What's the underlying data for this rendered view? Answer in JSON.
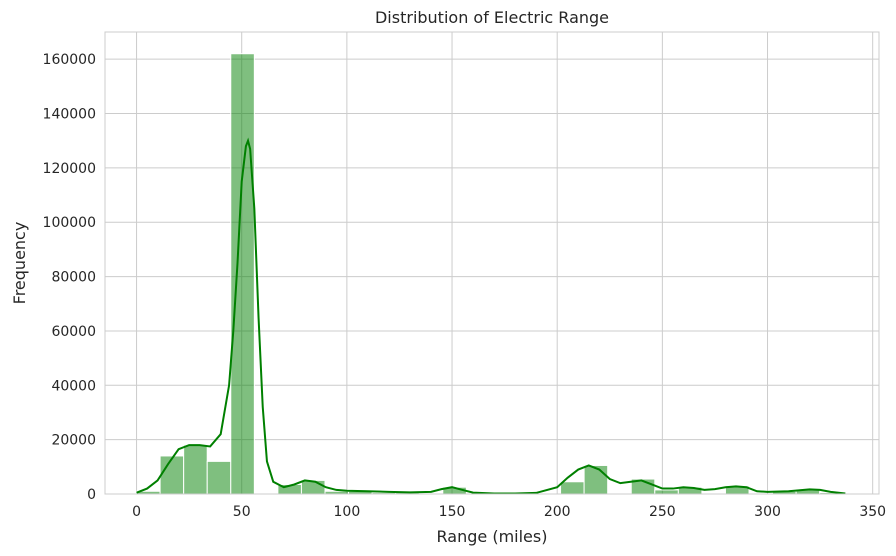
{
  "chart_data": {
    "type": "bar",
    "title": "Distribution of Electric Range",
    "xlabel": "Range (miles)",
    "ylabel": "Frequency",
    "xlim": [
      -15,
      353
    ],
    "ylim": [
      0,
      170000
    ],
    "xticks": [
      0,
      50,
      100,
      150,
      200,
      250,
      300,
      350
    ],
    "yticks": [
      0,
      20000,
      40000,
      60000,
      80000,
      100000,
      120000,
      140000,
      160000
    ],
    "grid": true,
    "colors": {
      "bars": "#008000",
      "kde": "#008000"
    },
    "bin_width": 11.2,
    "bin_start": 0,
    "bins": [
      {
        "x_start": 0.0,
        "count": 1000
      },
      {
        "x_start": 11.2,
        "count": 14000
      },
      {
        "x_start": 22.4,
        "count": 18000
      },
      {
        "x_start": 33.6,
        "count": 12000
      },
      {
        "x_start": 44.8,
        "count": 162000
      },
      {
        "x_start": 56.0,
        "count": 0
      },
      {
        "x_start": 67.2,
        "count": 3500
      },
      {
        "x_start": 78.4,
        "count": 5000
      },
      {
        "x_start": 89.6,
        "count": 1000
      },
      {
        "x_start": 100.8,
        "count": 1000
      },
      {
        "x_start": 112.0,
        "count": 500
      },
      {
        "x_start": 123.2,
        "count": 500
      },
      {
        "x_start": 134.4,
        "count": 0
      },
      {
        "x_start": 145.6,
        "count": 2500
      },
      {
        "x_start": 156.8,
        "count": 0
      },
      {
        "x_start": 168.0,
        "count": 0
      },
      {
        "x_start": 179.2,
        "count": 0
      },
      {
        "x_start": 190.4,
        "count": 0
      },
      {
        "x_start": 201.6,
        "count": 4500
      },
      {
        "x_start": 212.8,
        "count": 10500
      },
      {
        "x_start": 224.0,
        "count": 0
      },
      {
        "x_start": 235.2,
        "count": 5500
      },
      {
        "x_start": 246.4,
        "count": 1500
      },
      {
        "x_start": 257.6,
        "count": 2500
      },
      {
        "x_start": 268.8,
        "count": 0
      },
      {
        "x_start": 280.0,
        "count": 3000
      },
      {
        "x_start": 291.2,
        "count": 0
      },
      {
        "x_start": 302.4,
        "count": 1000
      },
      {
        "x_start": 313.6,
        "count": 1500
      },
      {
        "x_start": 324.8,
        "count": 500
      }
    ],
    "kde": {
      "x": [
        0,
        5,
        10,
        15,
        20,
        25,
        30,
        35,
        40,
        44,
        46,
        48,
        50,
        52,
        53,
        54,
        56,
        58,
        60,
        62,
        65,
        70,
        75,
        80,
        85,
        90,
        95,
        100,
        110,
        120,
        125,
        130,
        140,
        145,
        150,
        155,
        160,
        170,
        180,
        190,
        200,
        205,
        210,
        215,
        220,
        225,
        230,
        235,
        240,
        245,
        250,
        255,
        260,
        265,
        270,
        275,
        280,
        285,
        290,
        295,
        300,
        310,
        320,
        325,
        330,
        337
      ],
      "y": [
        500,
        2000,
        5000,
        11000,
        16500,
        18000,
        18000,
        17500,
        22000,
        40000,
        60000,
        85000,
        115000,
        128000,
        130000,
        127000,
        105000,
        65000,
        32000,
        12000,
        4500,
        2500,
        3500,
        5000,
        4500,
        2500,
        1500,
        1200,
        1000,
        800,
        700,
        600,
        800,
        1800,
        2500,
        1500,
        500,
        200,
        200,
        400,
        2500,
        6000,
        9000,
        10500,
        9000,
        5500,
        4000,
        4500,
        5000,
        3500,
        2000,
        2000,
        2500,
        2200,
        1500,
        1800,
        2500,
        2800,
        2500,
        1000,
        800,
        1000,
        1700,
        1500,
        800,
        200
      ]
    }
  }
}
